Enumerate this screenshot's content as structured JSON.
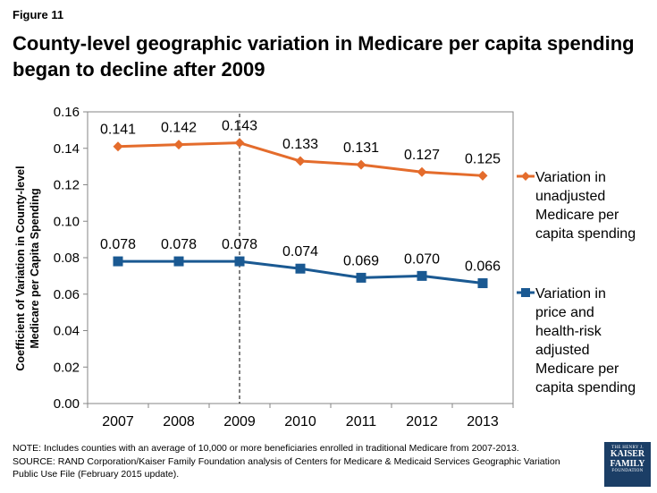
{
  "figure_label": "Figure 11",
  "title": "County-level geographic variation in Medicare per capita spending began to decline after 2009",
  "chart_data": {
    "type": "line",
    "title": "",
    "xlabel": "",
    "ylabel": "Coefficient of Variation in County-level Medicare per Capita Spending",
    "categories": [
      "2007",
      "2008",
      "2009",
      "2010",
      "2011",
      "2012",
      "2013"
    ],
    "ylim": [
      0,
      0.16
    ],
    "yticks": [
      "0.00",
      "0.02",
      "0.04",
      "0.06",
      "0.08",
      "0.10",
      "0.12",
      "0.14",
      "0.16"
    ],
    "ytick_values": [
      0,
      0.02,
      0.04,
      0.06,
      0.08,
      0.1,
      0.12,
      0.14,
      0.16
    ],
    "vline_category": "2009",
    "series": [
      {
        "name": "Variation in unadjusted Medicare per capita spending",
        "legend_lines": [
          "Variation in",
          "unadjusted",
          "Medicare per",
          "capita spending"
        ],
        "values": [
          0.141,
          0.142,
          0.143,
          0.133,
          0.131,
          0.127,
          0.125
        ],
        "labels": [
          "0.141",
          "0.142",
          "0.143",
          "0.133",
          "0.131",
          "0.127",
          "0.125"
        ],
        "color": "#e46c2c",
        "marker": "diamond"
      },
      {
        "name": "Variation in price and health-risk adjusted Medicare per capita spending",
        "legend_lines": [
          "Variation in",
          "price and",
          "health-risk",
          "adjusted",
          "Medicare per",
          "capita spending"
        ],
        "values": [
          0.078,
          0.078,
          0.078,
          0.074,
          0.069,
          0.07,
          0.066
        ],
        "labels": [
          "0.078",
          "0.078",
          "0.078",
          "0.074",
          "0.069",
          "0.070",
          "0.066"
        ],
        "color": "#1a5992",
        "marker": "square"
      }
    ]
  },
  "notes": {
    "note": "NOTE: Includes counties with an average of 10,000 or more beneficiaries enrolled in traditional Medicare from 2007-2013.",
    "source": "SOURCE: RAND Corporation/Kaiser Family Foundation analysis of Centers for Medicare & Medicaid Services Geographic Variation Public Use File (February 2015 update)."
  },
  "logo": {
    "line1": "THE HENRY J.",
    "line2": "KAISER",
    "line3": "FAMILY",
    "line4": "FOUNDATION"
  }
}
